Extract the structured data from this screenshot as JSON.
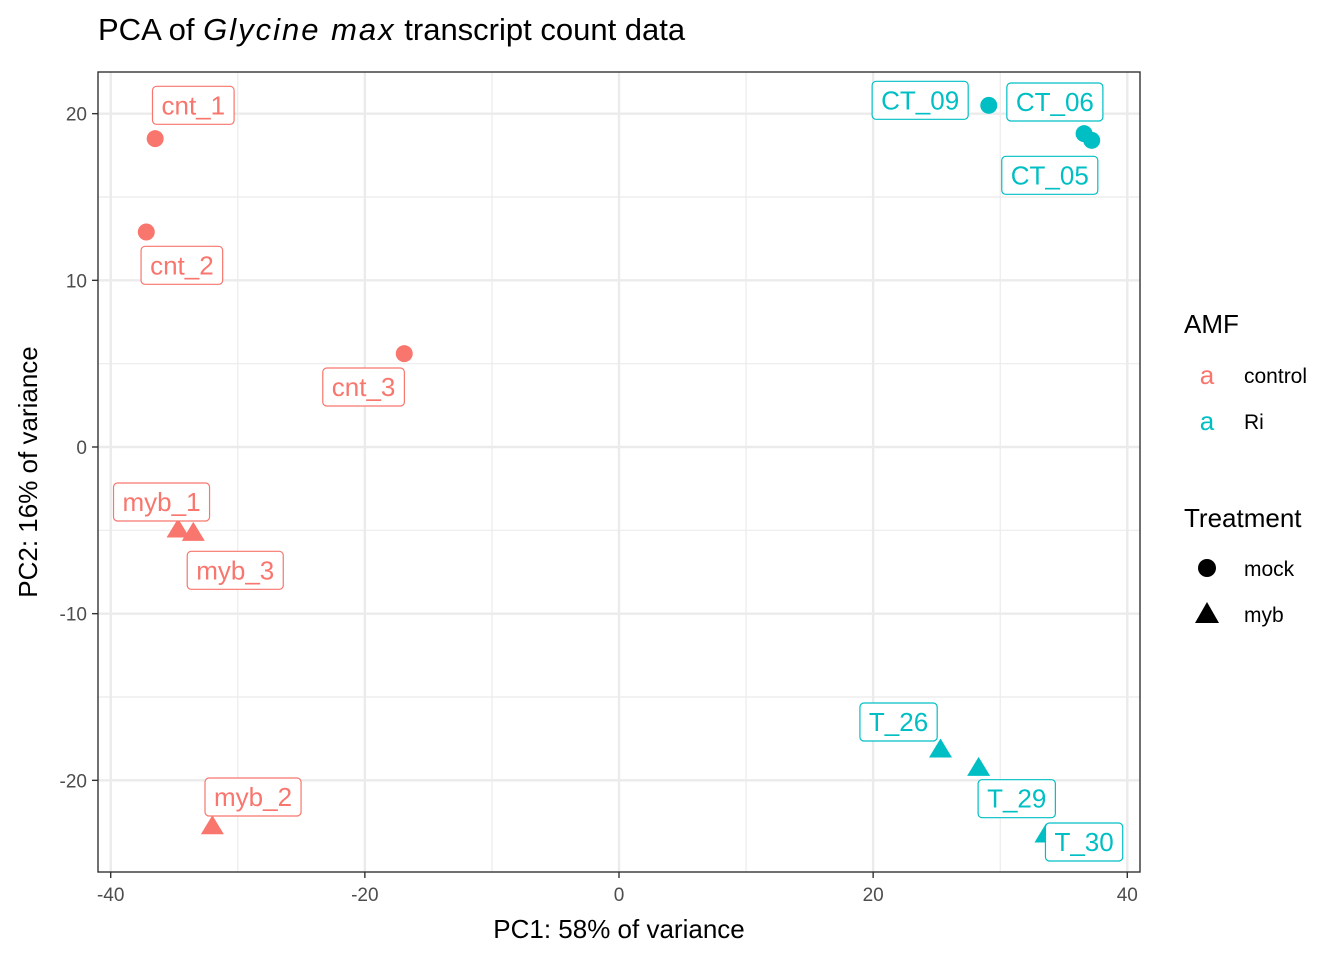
{
  "chart_data": {
    "type": "scatter",
    "title": {
      "prefix": "PCA of ",
      "italic": "Glycine max",
      "suffix": " transcript count data"
    },
    "xlabel": "PC1: 58% of variance",
    "ylabel": "PC2: 16% of variance",
    "xlim": [
      -41,
      41
    ],
    "ylim": [
      -25.5,
      22.5
    ],
    "x_ticks": [
      -40,
      -20,
      0,
      20,
      40
    ],
    "x_tick_labels": [
      "-40",
      "-20",
      "0",
      "20",
      "40"
    ],
    "y_ticks": [
      -20,
      -10,
      0,
      10,
      20
    ],
    "y_tick_labels": [
      "-20",
      "-10",
      "0",
      "10",
      "20"
    ],
    "grid": true,
    "legend_position": "right",
    "colors": {
      "control": "#F8766D",
      "Ri": "#00BFC4"
    },
    "legend": {
      "color_title": "AMF",
      "color_key_glyph": "a",
      "color_entries": [
        {
          "label": "control",
          "key": "control"
        },
        {
          "label": "Ri",
          "key": "Ri"
        }
      ],
      "shape_title": "Treatment",
      "shape_entries": [
        {
          "label": "mock",
          "shape": "circle"
        },
        {
          "label": "myb",
          "shape": "triangle"
        }
      ]
    },
    "points": [
      {
        "label": "cnt_1",
        "x": -36.5,
        "y": 18.5,
        "amf": "control",
        "treatment": "mock",
        "label_pos": [
          -33.5,
          20.5
        ]
      },
      {
        "label": "cnt_2",
        "x": -37.2,
        "y": 12.9,
        "amf": "control",
        "treatment": "mock",
        "label_pos": [
          -34.4,
          10.9
        ]
      },
      {
        "label": "cnt_3",
        "x": -16.9,
        "y": 5.6,
        "amf": "control",
        "treatment": "mock",
        "label_pos": [
          -20.1,
          3.6
        ]
      },
      {
        "label": "myb_1",
        "x": -34.7,
        "y": -5.0,
        "amf": "control",
        "treatment": "myb",
        "label_pos": [
          -36.0,
          -3.3
        ]
      },
      {
        "label": "myb_3",
        "x": -33.5,
        "y": -5.2,
        "amf": "control",
        "treatment": "myb",
        "label_pos": [
          -30.2,
          -7.4
        ]
      },
      {
        "label": "myb_2",
        "x": -32.0,
        "y": -22.8,
        "amf": "control",
        "treatment": "myb",
        "label_pos": [
          -28.8,
          -21.0
        ]
      },
      {
        "label": "CT_09",
        "x": 29.1,
        "y": 20.5,
        "amf": "Ri",
        "treatment": "mock",
        "label_pos": [
          23.7,
          20.8
        ]
      },
      {
        "label": "CT_06",
        "x": 36.6,
        "y": 18.8,
        "amf": "Ri",
        "treatment": "mock",
        "label_pos": [
          34.3,
          20.7
        ]
      },
      {
        "label": "CT_05",
        "x": 37.2,
        "y": 18.4,
        "amf": "Ri",
        "treatment": "mock",
        "label_pos": [
          33.9,
          16.3
        ]
      },
      {
        "label": "T_26",
        "x": 25.3,
        "y": -18.2,
        "amf": "Ri",
        "treatment": "myb",
        "label_pos": [
          22.0,
          -16.5
        ]
      },
      {
        "label": "T_29",
        "x": 28.3,
        "y": -19.3,
        "amf": "Ri",
        "treatment": "myb",
        "label_pos": [
          31.3,
          -21.1
        ]
      },
      {
        "label": "T_30",
        "x": 33.6,
        "y": -23.3,
        "amf": "Ri",
        "treatment": "myb",
        "label_pos": [
          36.6,
          -23.7
        ]
      }
    ]
  }
}
